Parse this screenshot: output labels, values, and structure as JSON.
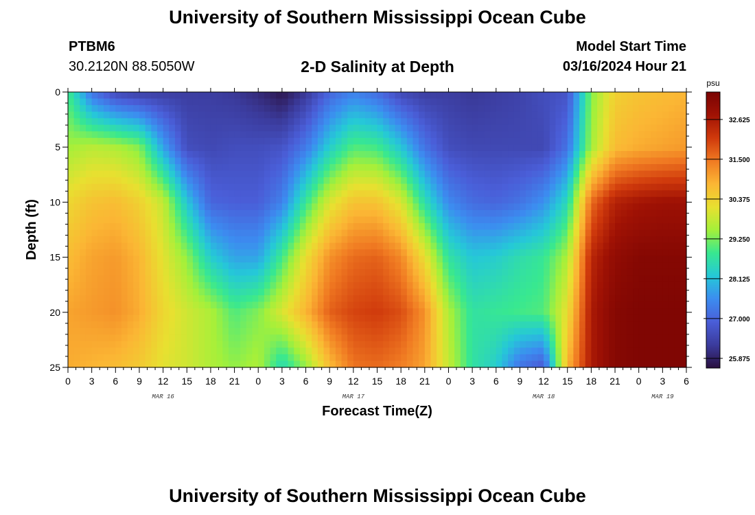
{
  "header": {
    "title": "University of Southern Mississippi Ocean Cube",
    "station": "PTBM6",
    "coords": "30.2120N  88.5050W",
    "subtitle": "2-D Salinity at Depth",
    "model_start_label": "Model Start Time",
    "model_start_value": "03/16/2024 Hour 21"
  },
  "footer": {
    "title": "University of Southern Mississippi Ocean Cube"
  },
  "chart_data": {
    "type": "heatmap",
    "title": "2-D Salinity at Depth",
    "xlabel": "Forecast Time(Z)",
    "ylabel": "Depth (ft)",
    "x_ticks": [
      "0",
      "3",
      "6",
      "9",
      "12",
      "15",
      "18",
      "21",
      "0",
      "3",
      "6",
      "9",
      "12",
      "15",
      "18",
      "21",
      "0",
      "3",
      "6",
      "9",
      "12",
      "15",
      "18",
      "21",
      "0",
      "3",
      "6"
    ],
    "date_labels": [
      {
        "label": "MAR 16",
        "hour": 12
      },
      {
        "label": "MAR 17",
        "hour": 36
      },
      {
        "label": "MAR 18",
        "hour": 60
      },
      {
        "label": "MAR 19",
        "hour": 75
      }
    ],
    "xlim_hours": [
      0,
      78
    ],
    "y_ticks": [
      0,
      5,
      10,
      15,
      20,
      25
    ],
    "ylim": [
      0,
      25
    ],
    "colorbar": {
      "unit": "psu",
      "ticks": [
        "32.625",
        "31.500",
        "30.375",
        "29.250",
        "28.125",
        "27.000",
        "25.875"
      ],
      "range": [
        25.6,
        33.4
      ],
      "colors": [
        "#2a0f3f",
        "#3b3b9c",
        "#4a5ed8",
        "#3c8cf0",
        "#25c8d8",
        "#38e890",
        "#a4f03a",
        "#e8e030",
        "#fbb634",
        "#f07a22",
        "#d03a0c",
        "#a01204",
        "#7a0403"
      ]
    },
    "grid": false,
    "model": {
      "x_hours": [
        0,
        3,
        6,
        9,
        12,
        15,
        18,
        21,
        24,
        27,
        30,
        33,
        36,
        39,
        42,
        45,
        48,
        51,
        54,
        57,
        60,
        63,
        66,
        69,
        72,
        75,
        78
      ],
      "depth_ft": [
        0,
        5,
        10,
        15,
        20,
        25
      ],
      "salinity_psu": [
        [
          28.9,
          27.2,
          26.5,
          26.3,
          26.3,
          26.3,
          26.3,
          26.2,
          26.0,
          25.7,
          26.2,
          27.0,
          27.4,
          27.1,
          26.5,
          26.3,
          26.3,
          26.2,
          26.3,
          26.4,
          26.6,
          26.7,
          29.3,
          30.4,
          30.6,
          30.7,
          30.8
        ],
        [
          29.5,
          29.7,
          29.6,
          29.3,
          27.8,
          26.6,
          26.5,
          26.6,
          26.6,
          26.7,
          27.3,
          28.3,
          29.0,
          28.9,
          28.2,
          27.2,
          26.6,
          26.5,
          26.5,
          26.5,
          26.5,
          27.2,
          29.5,
          30.7,
          30.9,
          31.0,
          31.1
        ],
        [
          30.3,
          30.6,
          30.7,
          30.4,
          29.8,
          28.2,
          27.0,
          26.9,
          26.9,
          27.4,
          28.8,
          30.0,
          30.6,
          30.6,
          30.0,
          28.6,
          27.5,
          27.1,
          27.0,
          27.2,
          27.6,
          28.5,
          31.6,
          32.5,
          32.7,
          32.8,
          32.8
        ],
        [
          30.7,
          31.0,
          31.1,
          30.8,
          30.1,
          29.4,
          28.3,
          27.8,
          27.8,
          28.9,
          30.2,
          31.2,
          31.6,
          31.7,
          31.3,
          30.2,
          28.7,
          28.2,
          28.3,
          28.6,
          28.8,
          29.6,
          32.4,
          33.0,
          33.2,
          33.2,
          33.2
        ],
        [
          31.0,
          31.1,
          31.2,
          30.9,
          30.3,
          29.9,
          29.6,
          29.0,
          29.3,
          30.0,
          30.8,
          31.7,
          32.0,
          32.1,
          31.9,
          31.2,
          29.6,
          28.7,
          28.8,
          28.9,
          29.0,
          30.2,
          32.6,
          33.2,
          33.3,
          33.3,
          33.3
        ],
        [
          30.9,
          30.8,
          30.7,
          30.5,
          30.1,
          29.9,
          29.6,
          29.4,
          29.6,
          28.5,
          29.4,
          30.7,
          31.5,
          31.6,
          31.4,
          31.0,
          29.8,
          28.7,
          28.3,
          27.2,
          26.8,
          30.8,
          32.6,
          33.2,
          33.3,
          33.3,
          33.3
        ]
      ]
    }
  }
}
